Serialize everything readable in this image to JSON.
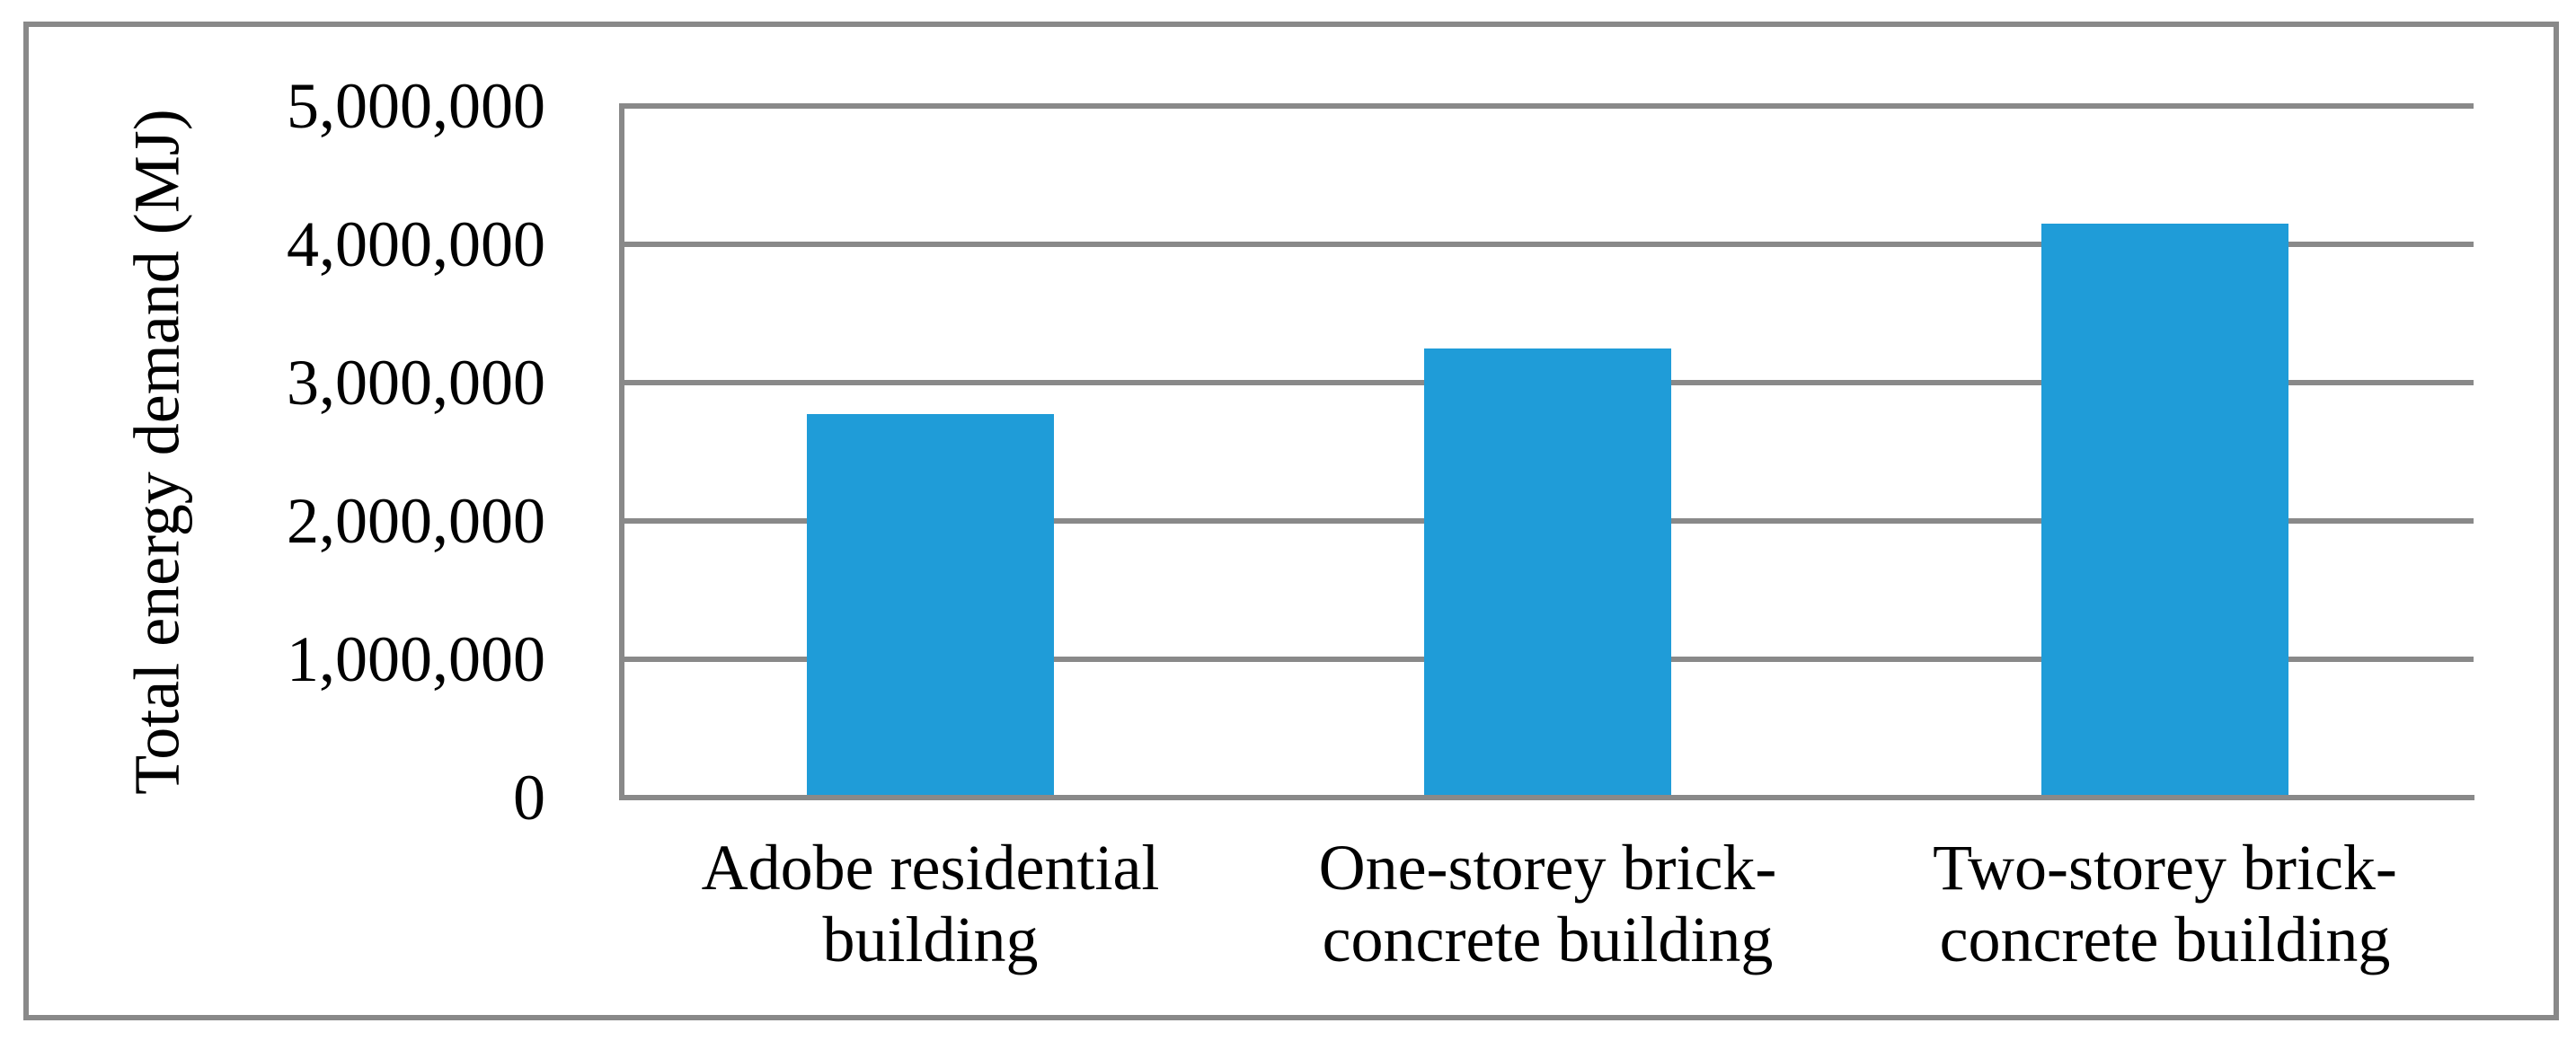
{
  "chart_data": {
    "type": "bar",
    "title": "",
    "ylabel": "Total energy demand (MJ)",
    "xlabel": "",
    "categories": [
      "Adobe residential building",
      "One-storey brick-concrete building",
      "Two-storey brick-concrete building"
    ],
    "values": [
      2770000,
      3250000,
      4150000
    ],
    "y_ticks": [
      "5,000,000",
      "4,000,000",
      "3,000,000",
      "2,000,000",
      "1,000,000",
      "0"
    ],
    "ylim": [
      0,
      5000000
    ],
    "grid": "horizontal gridlines at 1,000,000 intervals",
    "legend": "none",
    "bar_color": "#1F9CD8",
    "line_color": "#898989"
  }
}
